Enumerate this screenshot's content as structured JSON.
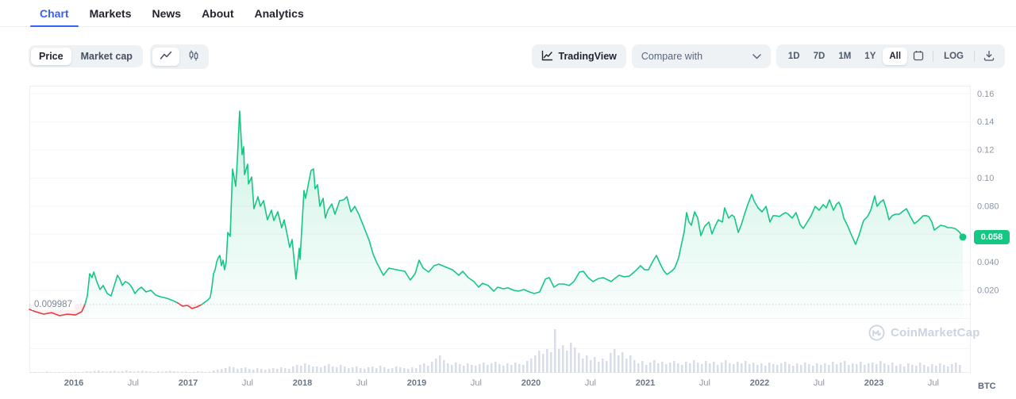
{
  "tabs": {
    "items": [
      {
        "label": "Chart",
        "active": true
      },
      {
        "label": "Markets",
        "active": false
      },
      {
        "label": "News",
        "active": false
      },
      {
        "label": "About",
        "active": false
      },
      {
        "label": "Analytics",
        "active": false
      }
    ]
  },
  "toolbar": {
    "price_label": "Price",
    "market_cap_label": "Market cap",
    "tradingview_label": "TradingView",
    "compare_label": "Compare with",
    "ranges": [
      "1D",
      "7D",
      "1M",
      "1Y",
      "All"
    ],
    "active_range": "All",
    "log_label": "LOG",
    "icons": [
      "line-chart-icon",
      "candlestick-chart-icon",
      "tradingview-icon",
      "chevron-down-icon",
      "calendar-icon",
      "download-icon"
    ]
  },
  "watermark": {
    "text": "CoinMarketCap"
  },
  "chart_data": {
    "type": "area",
    "title": "Price chart (All time)",
    "currency": "BTC",
    "current_price": "0.058",
    "current_value": 0.058,
    "baseline_value": 0.009987,
    "baseline_label": "0.009987",
    "ylim": [
      0,
      0.165
    ],
    "grid": true,
    "grid_values": [
      0.16,
      0.14,
      0.12,
      0.1,
      0.08,
      0.06,
      0.04,
      0.02,
      0
    ],
    "y_ticks": [
      {
        "value": 0.16,
        "label": "0.16"
      },
      {
        "value": 0.14,
        "label": "0.14"
      },
      {
        "value": 0.12,
        "label": "0.12"
      },
      {
        "value": 0.1,
        "label": "0.10"
      },
      {
        "value": 0.08,
        "label": "0.080"
      },
      {
        "value": 0.04,
        "label": "0.040"
      },
      {
        "value": 0.02,
        "label": "0.020"
      }
    ],
    "x_ticks": [
      {
        "label": "2016",
        "t": 2016,
        "major": true
      },
      {
        "label": "Jul",
        "t": 2016.52,
        "major": false
      },
      {
        "label": "2017",
        "t": 2017,
        "major": true
      },
      {
        "label": "Jul",
        "t": 2017.52,
        "major": false
      },
      {
        "label": "2018",
        "t": 2018,
        "major": true
      },
      {
        "label": "Jul",
        "t": 2018.52,
        "major": false
      },
      {
        "label": "2019",
        "t": 2019,
        "major": true
      },
      {
        "label": "Jul",
        "t": 2019.52,
        "major": false
      },
      {
        "label": "2020",
        "t": 2020,
        "major": true
      },
      {
        "label": "Jul",
        "t": 2020.52,
        "major": false
      },
      {
        "label": "2021",
        "t": 2021,
        "major": true
      },
      {
        "label": "Jul",
        "t": 2021.52,
        "major": false
      },
      {
        "label": "2022",
        "t": 2022,
        "major": true
      },
      {
        "label": "Jul",
        "t": 2022.52,
        "major": false
      },
      {
        "label": "2023",
        "t": 2023,
        "major": true
      },
      {
        "label": "Jul",
        "t": 2023.52,
        "major": false
      }
    ],
    "colors": {
      "up": "#16c784",
      "down": "#ea3943",
      "volume": "#d8dee9",
      "grid": "#f3f5f9",
      "border": "#eceff4",
      "axis_text": "#8b96a9",
      "axis_text_strong": "#6b7689",
      "baseline_dots": "#b6bfd0",
      "accent": "#3861fb"
    },
    "series": [
      [
        2015.611,
        0.0065
      ],
      [
        2015.667,
        0.0048
      ],
      [
        2015.736,
        0.0031
      ],
      [
        2015.806,
        0.0042
      ],
      [
        2015.875,
        0.002
      ],
      [
        2015.944,
        0.0031
      ],
      [
        2016.014,
        0.0025
      ],
      [
        2016.069,
        0.0048
      ],
      [
        2016.097,
        0.0099
      ],
      [
        2016.118,
        0.0161
      ],
      [
        2016.139,
        0.0319
      ],
      [
        2016.16,
        0.0291
      ],
      [
        2016.174,
        0.0331
      ],
      [
        2016.201,
        0.0263
      ],
      [
        2016.229,
        0.0206
      ],
      [
        2016.257,
        0.0235
      ],
      [
        2016.292,
        0.0178
      ],
      [
        2016.326,
        0.0161
      ],
      [
        2016.354,
        0.0235
      ],
      [
        2016.382,
        0.0308
      ],
      [
        2016.403,
        0.028
      ],
      [
        2016.424,
        0.0235
      ],
      [
        2016.451,
        0.0263
      ],
      [
        2016.479,
        0.0251
      ],
      [
        2016.507,
        0.0223
      ],
      [
        2016.535,
        0.0178
      ],
      [
        2016.563,
        0.0206
      ],
      [
        2016.59,
        0.0223
      ],
      [
        2016.632,
        0.0189
      ],
      [
        2016.674,
        0.0201
      ],
      [
        2016.715,
        0.0167
      ],
      [
        2016.757,
        0.0155
      ],
      [
        2016.813,
        0.0144
      ],
      [
        2016.868,
        0.0127
      ],
      [
        2016.91,
        0.011
      ],
      [
        2016.951,
        0.0088
      ],
      [
        2016.993,
        0.0093
      ],
      [
        2017.035,
        0.0071
      ],
      [
        2017.076,
        0.0082
      ],
      [
        2017.118,
        0.0099
      ],
      [
        2017.146,
        0.0116
      ],
      [
        2017.174,
        0.0133
      ],
      [
        2017.194,
        0.015
      ],
      [
        2017.208,
        0.0223
      ],
      [
        2017.222,
        0.0319
      ],
      [
        2017.236,
        0.0347
      ],
      [
        2017.25,
        0.0404
      ],
      [
        2017.264,
        0.0432
      ],
      [
        2017.278,
        0.0449
      ],
      [
        2017.292,
        0.0376
      ],
      [
        2017.306,
        0.0415
      ],
      [
        2017.319,
        0.0347
      ],
      [
        2017.333,
        0.0404
      ],
      [
        2017.347,
        0.0613
      ],
      [
        2017.368,
        0.0585
      ],
      [
        2017.389,
        0.1065
      ],
      [
        2017.417,
        0.0941
      ],
      [
        2017.431,
        0.1138
      ],
      [
        2017.451,
        0.1477
      ],
      [
        2017.472,
        0.1167
      ],
      [
        2017.486,
        0.1223
      ],
      [
        2017.493,
        0.1025
      ],
      [
        2017.521,
        0.1099
      ],
      [
        2017.528,
        0.0958
      ],
      [
        2017.556,
        0.1008
      ],
      [
        2017.576,
        0.0782
      ],
      [
        2017.611,
        0.0867
      ],
      [
        2017.632,
        0.0799
      ],
      [
        2017.66,
        0.0839
      ],
      [
        2017.694,
        0.0703
      ],
      [
        2017.729,
        0.0771
      ],
      [
        2017.75,
        0.0698
      ],
      [
        2017.785,
        0.076
      ],
      [
        2017.819,
        0.0647
      ],
      [
        2017.84,
        0.0703
      ],
      [
        2017.889,
        0.0506
      ],
      [
        2017.91,
        0.0562
      ],
      [
        2017.944,
        0.028
      ],
      [
        2017.972,
        0.05
      ],
      [
        2017.979,
        0.0421
      ],
      [
        2018.014,
        0.0912
      ],
      [
        2018.028,
        0.0856
      ],
      [
        2018.076,
        0.1054
      ],
      [
        2018.097,
        0.1065
      ],
      [
        2018.111,
        0.0924
      ],
      [
        2018.132,
        0.0952
      ],
      [
        2018.153,
        0.0799
      ],
      [
        2018.181,
        0.0856
      ],
      [
        2018.201,
        0.0715
      ],
      [
        2018.222,
        0.0771
      ],
      [
        2018.257,
        0.0816
      ],
      [
        2018.285,
        0.0743
      ],
      [
        2018.326,
        0.0839
      ],
      [
        2018.361,
        0.0845
      ],
      [
        2018.389,
        0.0867
      ],
      [
        2018.424,
        0.076
      ],
      [
        2018.458,
        0.0799
      ],
      [
        2018.493,
        0.0743
      ],
      [
        2018.535,
        0.0658
      ],
      [
        2018.583,
        0.0557
      ],
      [
        2018.618,
        0.046
      ],
      [
        2018.653,
        0.0393
      ],
      [
        2018.708,
        0.0308
      ],
      [
        2018.757,
        0.0359
      ],
      [
        2018.826,
        0.0347
      ],
      [
        2018.896,
        0.0336
      ],
      [
        2018.944,
        0.0274
      ],
      [
        2018.986,
        0.0319
      ],
      [
        2019.021,
        0.0415
      ],
      [
        2019.056,
        0.0359
      ],
      [
        2019.104,
        0.0331
      ],
      [
        2019.153,
        0.0376
      ],
      [
        2019.194,
        0.0387
      ],
      [
        2019.243,
        0.037
      ],
      [
        2019.313,
        0.0347
      ],
      [
        2019.368,
        0.0308
      ],
      [
        2019.403,
        0.0336
      ],
      [
        2019.451,
        0.0291
      ],
      [
        2019.5,
        0.0263
      ],
      [
        2019.542,
        0.0223
      ],
      [
        2019.576,
        0.0251
      ],
      [
        2019.625,
        0.0235
      ],
      [
        2019.674,
        0.0195
      ],
      [
        2019.708,
        0.0223
      ],
      [
        2019.757,
        0.0212
      ],
      [
        2019.799,
        0.0218
      ],
      [
        2019.847,
        0.0201
      ],
      [
        2019.889,
        0.0195
      ],
      [
        2019.938,
        0.0206
      ],
      [
        2019.986,
        0.0189
      ],
      [
        2020.028,
        0.0178
      ],
      [
        2020.076,
        0.0189
      ],
      [
        2020.125,
        0.028
      ],
      [
        2020.16,
        0.0291
      ],
      [
        2020.201,
        0.0223
      ],
      [
        2020.243,
        0.0246
      ],
      [
        2020.285,
        0.0246
      ],
      [
        2020.333,
        0.0235
      ],
      [
        2020.375,
        0.0263
      ],
      [
        2020.424,
        0.0331
      ],
      [
        2020.458,
        0.0336
      ],
      [
        2020.5,
        0.0291
      ],
      [
        2020.542,
        0.0263
      ],
      [
        2020.59,
        0.0285
      ],
      [
        2020.632,
        0.0291
      ],
      [
        2020.674,
        0.0274
      ],
      [
        2020.701,
        0.0263
      ],
      [
        2020.743,
        0.0291
      ],
      [
        2020.771,
        0.0308
      ],
      [
        2020.813,
        0.0297
      ],
      [
        2020.861,
        0.0302
      ],
      [
        2020.91,
        0.0336
      ],
      [
        2020.958,
        0.0376
      ],
      [
        2020.993,
        0.0347
      ],
      [
        2021.028,
        0.0347
      ],
      [
        2021.063,
        0.0404
      ],
      [
        2021.097,
        0.0449
      ],
      [
        2021.125,
        0.0398
      ],
      [
        2021.16,
        0.0342
      ],
      [
        2021.188,
        0.0314
      ],
      [
        2021.229,
        0.0336
      ],
      [
        2021.257,
        0.0359
      ],
      [
        2021.292,
        0.0432
      ],
      [
        2021.313,
        0.0517
      ],
      [
        2021.34,
        0.0619
      ],
      [
        2021.361,
        0.0754
      ],
      [
        2021.382,
        0.0687
      ],
      [
        2021.403,
        0.0664
      ],
      [
        2021.431,
        0.076
      ],
      [
        2021.458,
        0.0715
      ],
      [
        2021.486,
        0.059
      ],
      [
        2021.521,
        0.0658
      ],
      [
        2021.556,
        0.0687
      ],
      [
        2021.583,
        0.0602
      ],
      [
        2021.611,
        0.0658
      ],
      [
        2021.639,
        0.0703
      ],
      [
        2021.674,
        0.0687
      ],
      [
        2021.694,
        0.0788
      ],
      [
        2021.729,
        0.0715
      ],
      [
        2021.757,
        0.0737
      ],
      [
        2021.778,
        0.0726
      ],
      [
        2021.813,
        0.0613
      ],
      [
        2021.84,
        0.0669
      ],
      [
        2021.868,
        0.0743
      ],
      [
        2021.896,
        0.0811
      ],
      [
        2021.931,
        0.0884
      ],
      [
        2021.951,
        0.0839
      ],
      [
        2021.986,
        0.0788
      ],
      [
        2022.021,
        0.076
      ],
      [
        2022.056,
        0.0799
      ],
      [
        2022.09,
        0.0687
      ],
      [
        2022.118,
        0.0732
      ],
      [
        2022.139,
        0.0732
      ],
      [
        2022.174,
        0.0726
      ],
      [
        2022.201,
        0.0743
      ],
      [
        2022.229,
        0.0754
      ],
      [
        2022.25,
        0.0743
      ],
      [
        2022.285,
        0.0715
      ],
      [
        2022.319,
        0.0754
      ],
      [
        2022.354,
        0.0669
      ],
      [
        2022.382,
        0.0641
      ],
      [
        2022.417,
        0.0687
      ],
      [
        2022.451,
        0.0732
      ],
      [
        2022.486,
        0.0799
      ],
      [
        2022.521,
        0.0771
      ],
      [
        2022.556,
        0.0811
      ],
      [
        2022.583,
        0.0788
      ],
      [
        2022.611,
        0.0845
      ],
      [
        2022.646,
        0.0771
      ],
      [
        2022.674,
        0.0816
      ],
      [
        2022.694,
        0.0828
      ],
      [
        2022.715,
        0.0788
      ],
      [
        2022.736,
        0.0715
      ],
      [
        2022.771,
        0.0658
      ],
      [
        2022.799,
        0.0602
      ],
      [
        2022.84,
        0.0528
      ],
      [
        2022.868,
        0.059
      ],
      [
        2022.91,
        0.0698
      ],
      [
        2022.944,
        0.0726
      ],
      [
        2022.972,
        0.0771
      ],
      [
        2023.007,
        0.0873
      ],
      [
        2023.028,
        0.0799
      ],
      [
        2023.056,
        0.0828
      ],
      [
        2023.083,
        0.0845
      ],
      [
        2023.111,
        0.0771
      ],
      [
        2023.132,
        0.0703
      ],
      [
        2023.16,
        0.0732
      ],
      [
        2023.188,
        0.0743
      ],
      [
        2023.222,
        0.0743
      ],
      [
        2023.257,
        0.0766
      ],
      [
        2023.285,
        0.0782
      ],
      [
        2023.319,
        0.0726
      ],
      [
        2023.354,
        0.0675
      ],
      [
        2023.389,
        0.0698
      ],
      [
        2023.431,
        0.0732
      ],
      [
        2023.458,
        0.0732
      ],
      [
        2023.479,
        0.0726
      ],
      [
        2023.507,
        0.0687
      ],
      [
        2023.528,
        0.063
      ],
      [
        2023.556,
        0.0647
      ],
      [
        2023.583,
        0.0664
      ],
      [
        2023.618,
        0.0658
      ],
      [
        2023.646,
        0.0647
      ],
      [
        2023.674,
        0.0647
      ],
      [
        2023.708,
        0.0641
      ],
      [
        2023.729,
        0.063
      ],
      [
        2023.75,
        0.0613
      ],
      [
        2023.778,
        0.058
      ]
    ],
    "volume_relative": [
      1,
      1,
      0.5,
      1,
      1.5,
      1,
      0.5,
      1,
      1,
      0.5,
      1,
      1.5,
      1,
      1,
      2,
      1.5,
      2.5,
      3,
      2,
      1.5,
      2,
      2.5,
      1.5,
      2,
      3,
      2,
      1.5,
      2,
      2.5,
      2,
      1.5,
      1,
      2,
      1.5,
      2,
      2.5,
      2,
      1.5,
      1.5,
      1.5,
      1,
      1.5,
      2,
      1.5,
      1,
      1.5,
      3,
      4,
      5,
      6,
      8,
      7,
      5,
      6,
      7,
      5,
      4,
      6,
      5,
      4,
      5,
      6,
      5,
      7,
      6,
      5,
      8,
      10,
      9,
      12,
      10,
      8,
      8,
      7,
      9,
      11,
      8,
      7,
      10,
      8,
      6,
      7,
      8,
      6,
      5,
      7,
      8,
      6,
      9,
      7,
      5,
      6,
      8,
      7,
      6,
      5,
      7,
      6,
      10,
      12,
      9,
      14,
      18,
      22,
      16,
      12,
      10,
      13,
      11,
      9,
      12,
      10,
      9,
      11,
      13,
      10,
      12,
      14,
      11,
      9,
      12,
      10,
      13,
      11,
      10,
      15,
      18,
      22,
      28,
      24,
      30,
      26,
      55,
      30,
      35,
      28,
      38,
      32,
      25,
      18,
      22,
      16,
      20,
      14,
      18,
      15,
      25,
      30,
      22,
      26,
      18,
      22,
      16,
      12,
      15,
      10,
      13,
      16,
      12,
      14,
      11,
      13,
      15,
      12,
      10,
      14,
      12,
      16,
      13,
      11,
      15,
      12,
      14,
      10,
      13,
      16,
      12,
      11,
      14,
      12,
      15,
      11,
      13,
      10,
      12,
      9,
      13,
      11,
      10,
      12,
      14,
      11,
      9,
      12,
      10,
      13,
      11,
      9,
      12,
      10,
      12,
      10,
      14,
      11,
      13,
      15,
      10,
      12,
      11,
      14,
      10,
      12,
      13,
      11,
      15,
      12,
      10,
      13,
      9,
      11,
      8,
      12,
      10,
      9,
      13,
      10,
      8,
      11,
      9,
      12,
      10,
      8,
      11,
      13,
      10
    ]
  }
}
